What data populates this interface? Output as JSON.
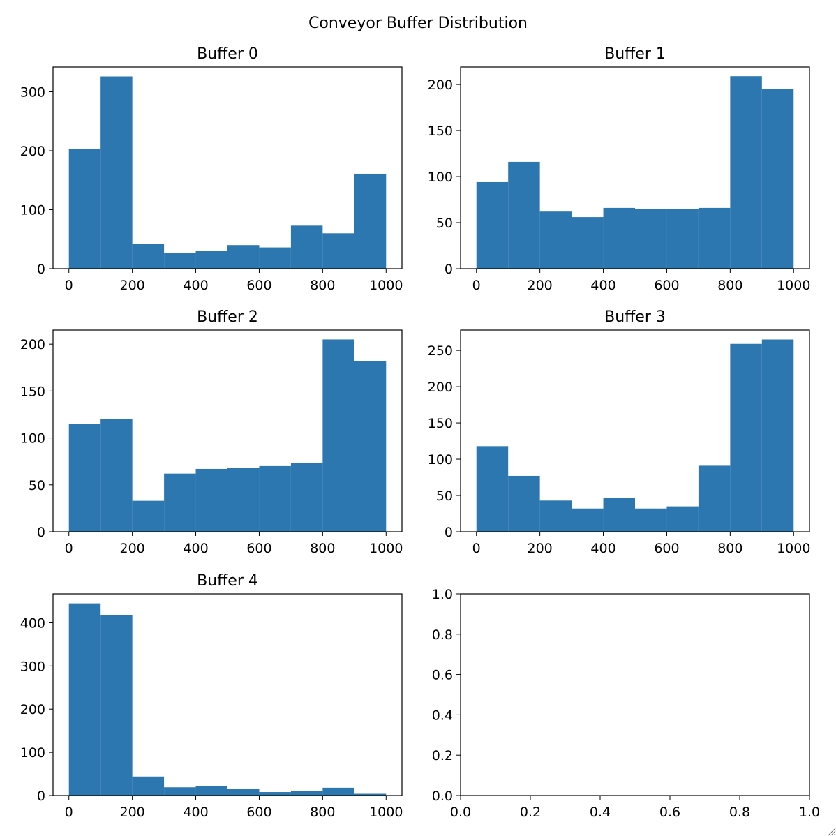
{
  "figure": {
    "title": "Conveyor Buffer Distribution",
    "bar_color": "#2c77b0"
  },
  "chart_data": [
    {
      "type": "bar",
      "title": "Buffer 0",
      "bin_edges": [
        0,
        100,
        200,
        300,
        400,
        500,
        600,
        700,
        800,
        900,
        1000
      ],
      "values": [
        203,
        326,
        42,
        27,
        30,
        40,
        36,
        73,
        60,
        161
      ],
      "xlim": [
        -50,
        1050
      ],
      "ylim": [
        0,
        342
      ],
      "xticks": [
        0,
        200,
        400,
        600,
        800,
        1000
      ],
      "xtick_labels": [
        "0",
        "200",
        "400",
        "600",
        "800",
        "1000"
      ],
      "yticks": [
        0,
        100,
        200,
        300
      ],
      "ytick_labels": [
        "0",
        "100",
        "200",
        "300"
      ],
      "xlabel": "",
      "ylabel": ""
    },
    {
      "type": "bar",
      "title": "Buffer 1",
      "bin_edges": [
        0,
        100,
        200,
        300,
        400,
        500,
        600,
        700,
        800,
        900,
        1000
      ],
      "values": [
        94,
        116,
        62,
        56,
        66,
        65,
        65,
        66,
        209,
        195
      ],
      "xlim": [
        -50,
        1050
      ],
      "ylim": [
        0,
        219
      ],
      "xticks": [
        0,
        200,
        400,
        600,
        800,
        1000
      ],
      "xtick_labels": [
        "0",
        "200",
        "400",
        "600",
        "800",
        "1000"
      ],
      "yticks": [
        0,
        50,
        100,
        150,
        200
      ],
      "ytick_labels": [
        "0",
        "50",
        "100",
        "150",
        "200"
      ],
      "xlabel": "",
      "ylabel": ""
    },
    {
      "type": "bar",
      "title": "Buffer 2",
      "bin_edges": [
        0,
        100,
        200,
        300,
        400,
        500,
        600,
        700,
        800,
        900,
        1000
      ],
      "values": [
        115,
        120,
        33,
        62,
        67,
        68,
        70,
        73,
        205,
        182
      ],
      "xlim": [
        -50,
        1050
      ],
      "ylim": [
        0,
        215
      ],
      "xticks": [
        0,
        200,
        400,
        600,
        800,
        1000
      ],
      "xtick_labels": [
        "0",
        "200",
        "400",
        "600",
        "800",
        "1000"
      ],
      "yticks": [
        0,
        50,
        100,
        150,
        200
      ],
      "ytick_labels": [
        "0",
        "50",
        "100",
        "150",
        "200"
      ],
      "xlabel": "",
      "ylabel": ""
    },
    {
      "type": "bar",
      "title": "Buffer 3",
      "bin_edges": [
        0,
        100,
        200,
        300,
        400,
        500,
        600,
        700,
        800,
        900,
        1000
      ],
      "values": [
        118,
        77,
        43,
        32,
        47,
        32,
        35,
        91,
        259,
        265
      ],
      "xlim": [
        -50,
        1050
      ],
      "ylim": [
        0,
        278
      ],
      "xticks": [
        0,
        200,
        400,
        600,
        800,
        1000
      ],
      "xtick_labels": [
        "0",
        "200",
        "400",
        "600",
        "800",
        "1000"
      ],
      "yticks": [
        0,
        50,
        100,
        150,
        200,
        250
      ],
      "ytick_labels": [
        "0",
        "50",
        "100",
        "150",
        "200",
        "250"
      ],
      "xlabel": "",
      "ylabel": ""
    },
    {
      "type": "bar",
      "title": "Buffer 4",
      "bin_edges": [
        0,
        100,
        200,
        300,
        400,
        500,
        600,
        700,
        800,
        900,
        1000
      ],
      "values": [
        445,
        418,
        44,
        19,
        21,
        15,
        8,
        10,
        18,
        4
      ],
      "xlim": [
        -50,
        1050
      ],
      "ylim": [
        0,
        467
      ],
      "xticks": [
        0,
        200,
        400,
        600,
        800,
        1000
      ],
      "xtick_labels": [
        "0",
        "200",
        "400",
        "600",
        "800",
        "1000"
      ],
      "yticks": [
        0,
        100,
        200,
        300,
        400
      ],
      "ytick_labels": [
        "0",
        "100",
        "200",
        "300",
        "400"
      ],
      "xlabel": "",
      "ylabel": ""
    },
    {
      "type": "bar",
      "title": "",
      "bin_edges": [],
      "values": [],
      "xlim": [
        0,
        1
      ],
      "ylim": [
        0,
        1
      ],
      "xticks": [
        0,
        0.2,
        0.4,
        0.6,
        0.8,
        1
      ],
      "xtick_labels": [
        "0.0",
        "0.2",
        "0.4",
        "0.6",
        "0.8",
        "1.0"
      ],
      "yticks": [
        0,
        0.2,
        0.4,
        0.6,
        0.8,
        1
      ],
      "ytick_labels": [
        "0.0",
        "0.2",
        "0.4",
        "0.6",
        "0.8",
        "1.0"
      ],
      "xlabel": "",
      "ylabel": ""
    }
  ]
}
